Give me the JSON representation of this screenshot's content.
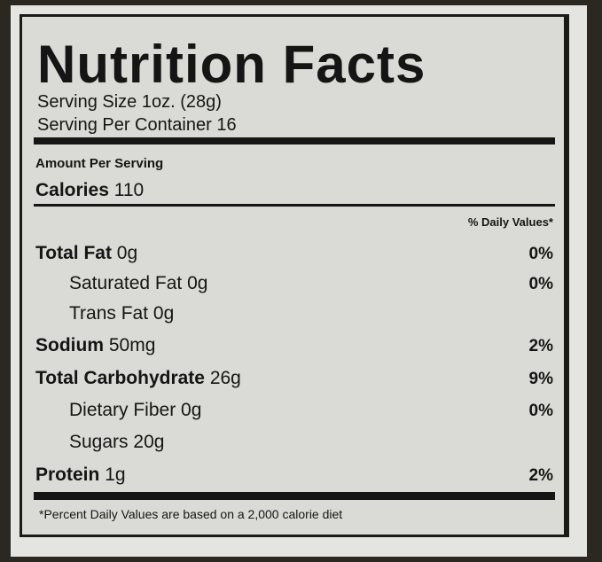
{
  "label": {
    "title": "Nutrition Facts",
    "serving_size": "Serving Size 1oz. (28g)",
    "servings_per_container": "Serving Per Container 16",
    "amount_per_serving": "Amount Per Serving",
    "calories_label": "Calories",
    "calories_value": "110",
    "daily_values_header": "% Daily Values*",
    "nutrients": [
      {
        "name": "Total Fat",
        "amount": "0g",
        "dv": "0%",
        "bold": true
      },
      {
        "name": "Saturated Fat",
        "amount": "0g",
        "dv": "0%",
        "bold": false
      },
      {
        "name": "Trans Fat",
        "amount": "0g",
        "dv": "",
        "bold": false
      },
      {
        "name": "Sodium",
        "amount": "50mg",
        "dv": "2%",
        "bold": true
      },
      {
        "name": "Total Carbohydrate",
        "amount": "26g",
        "dv": "9%",
        "bold": true
      },
      {
        "name": "Dietary Fiber",
        "amount": "0g",
        "dv": "0%",
        "bold": false
      },
      {
        "name": "Sugars",
        "amount": "20g",
        "dv": "",
        "bold": false
      },
      {
        "name": "Protein",
        "amount": "1g",
        "dv": "2%",
        "bold": true
      }
    ],
    "footnote": "*Percent Daily Values are based on a 2,000 calorie diet"
  }
}
